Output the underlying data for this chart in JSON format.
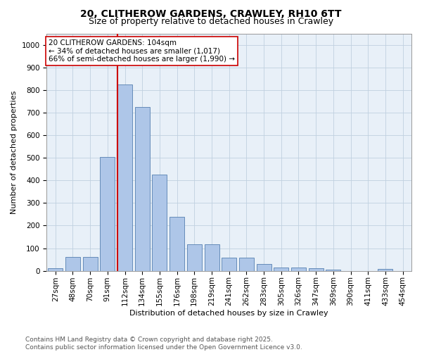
{
  "title": "20, CLITHEROW GARDENS, CRAWLEY, RH10 6TT",
  "subtitle": "Size of property relative to detached houses in Crawley",
  "xlabel": "Distribution of detached houses by size in Crawley",
  "ylabel": "Number of detached properties",
  "bar_labels": [
    "27sqm",
    "48sqm",
    "70sqm",
    "91sqm",
    "112sqm",
    "134sqm",
    "155sqm",
    "176sqm",
    "198sqm",
    "219sqm",
    "241sqm",
    "262sqm",
    "283sqm",
    "305sqm",
    "326sqm",
    "347sqm",
    "369sqm",
    "390sqm",
    "411sqm",
    "433sqm",
    "454sqm"
  ],
  "bar_values": [
    10,
    60,
    60,
    505,
    825,
    725,
    425,
    238,
    118,
    118,
    57,
    57,
    30,
    15,
    15,
    10,
    5,
    0,
    0,
    8,
    0
  ],
  "bar_color": "#aec6e8",
  "bar_edgecolor": "#5580b0",
  "vline_color": "#cc0000",
  "vline_x_index": 3.575,
  "annotation_text": "20 CLITHEROW GARDENS: 104sqm\n← 34% of detached houses are smaller (1,017)\n66% of semi-detached houses are larger (1,990) →",
  "annotation_box_edgecolor": "#cc0000",
  "annotation_box_facecolor": "#ffffff",
  "ylim": [
    0,
    1050
  ],
  "yticks": [
    0,
    100,
    200,
    300,
    400,
    500,
    600,
    700,
    800,
    900,
    1000
  ],
  "footer_text": "Contains HM Land Registry data © Crown copyright and database right 2025.\nContains public sector information licensed under the Open Government Licence v3.0.",
  "background_color": "#ffffff",
  "plot_bg_color": "#e8f0f8",
  "grid_color": "#c0d0e0",
  "title_fontsize": 10,
  "subtitle_fontsize": 9,
  "axis_label_fontsize": 8,
  "tick_fontsize": 7.5,
  "annotation_fontsize": 7.5,
  "footer_fontsize": 6.5
}
